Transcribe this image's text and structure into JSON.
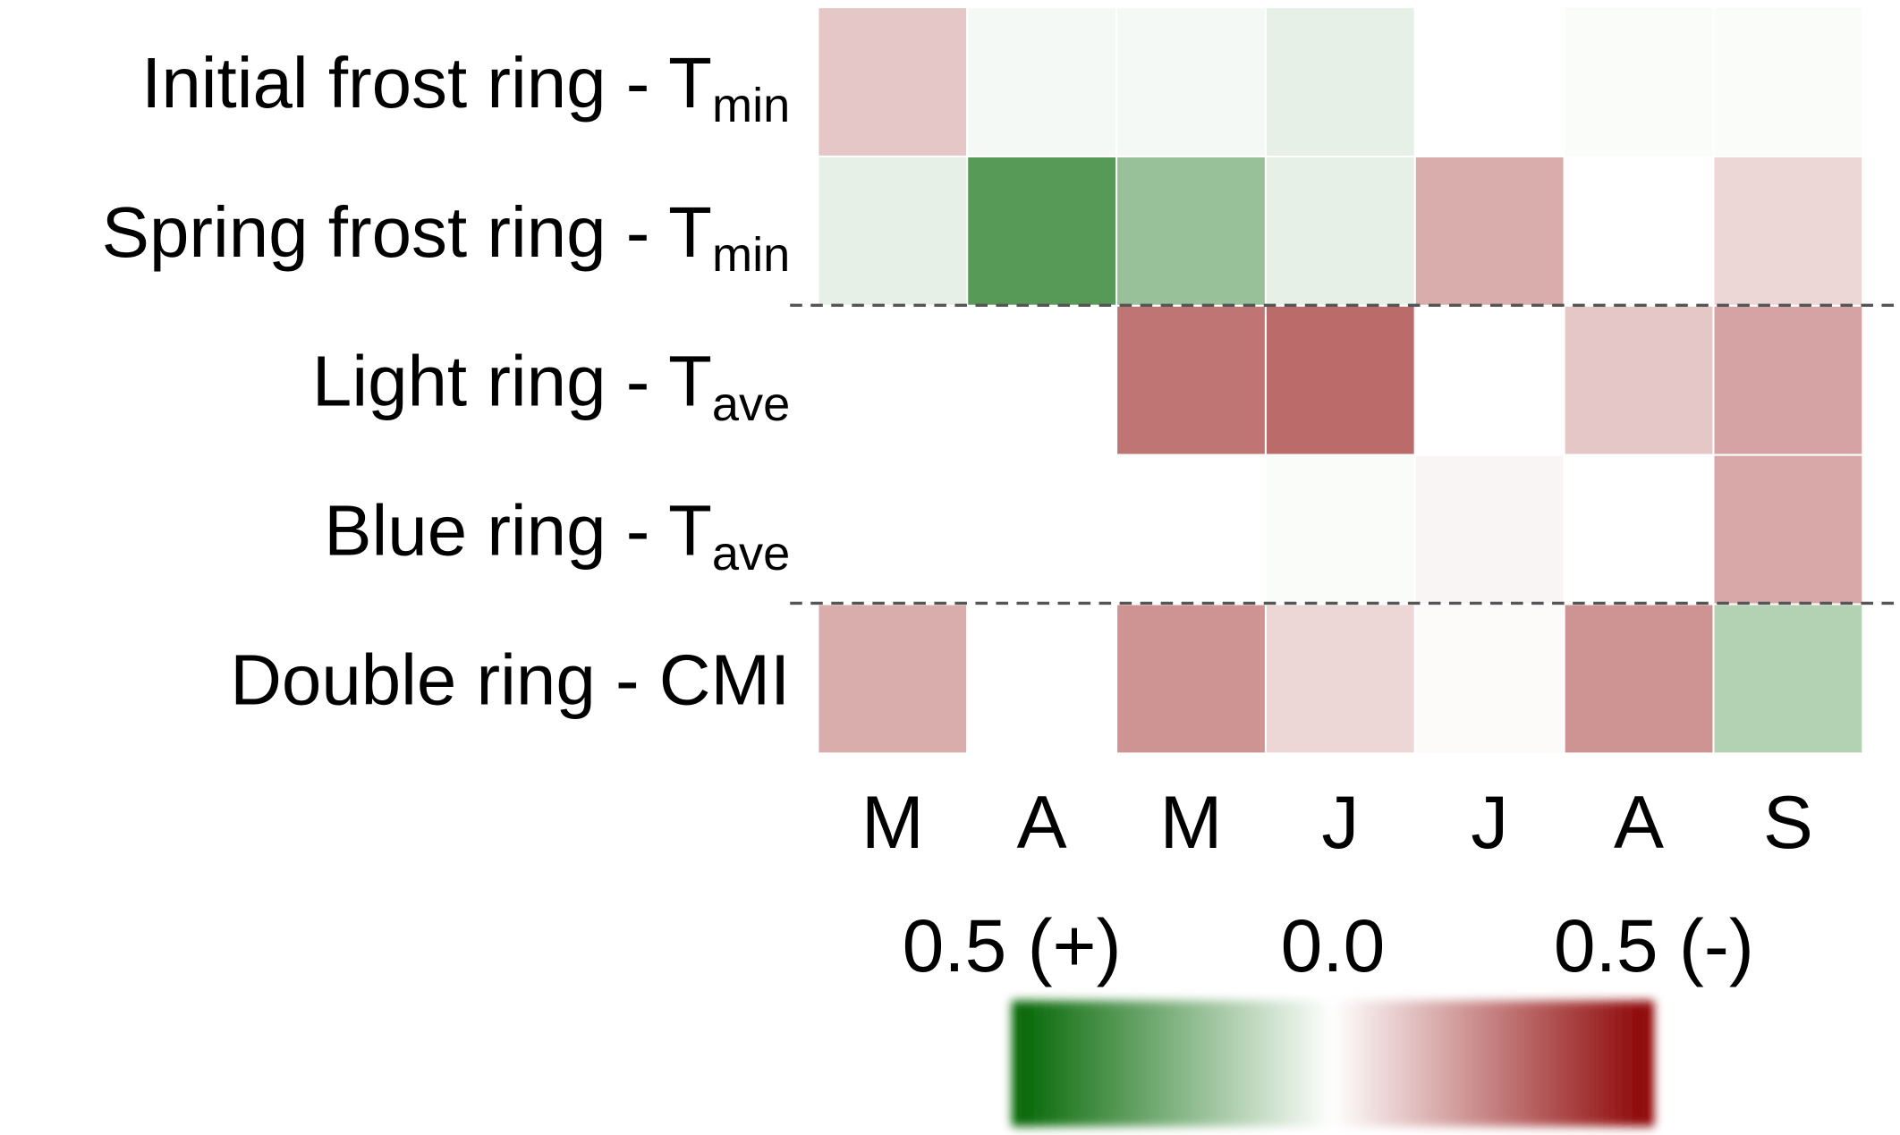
{
  "chart_data": {
    "type": "heatmap",
    "rows": [
      {
        "label": "Initial frost ring - T",
        "sub": "min"
      },
      {
        "label": "Spring frost ring - T",
        "sub": "min"
      },
      {
        "label": "Light ring - T",
        "sub": "ave"
      },
      {
        "label": "Blue ring - T",
        "sub": "ave"
      },
      {
        "label": "Double ring - CMI"
      }
    ],
    "categories": [
      "M",
      "A",
      "M",
      "J",
      "J",
      "A",
      "S"
    ],
    "values": [
      [
        -0.11,
        0.02,
        0.02,
        0.05,
        0.0,
        0.01,
        0.01
      ],
      [
        0.05,
        0.33,
        0.2,
        0.05,
        -0.16,
        0.0,
        -0.08
      ],
      [
        0.0,
        0.0,
        -0.27,
        -0.29,
        0.0,
        -0.11,
        -0.18
      ],
      [
        0.0,
        0.0,
        0.0,
        0.01,
        -0.02,
        0.0,
        -0.17
      ],
      [
        -0.16,
        0.0,
        -0.21,
        -0.08,
        -0.01,
        -0.21,
        0.15
      ]
    ],
    "clim": [
      0.5,
      -0.5
    ],
    "colors": [
      "#006400",
      "#ffffff",
      "#8b0000"
    ],
    "cticks": [
      {
        "value": 0.5,
        "label": "0.5 (+)"
      },
      {
        "value": 0,
        "label": "0.0"
      },
      {
        "value": -0.5,
        "label": "0.5 (-)"
      }
    ]
  }
}
